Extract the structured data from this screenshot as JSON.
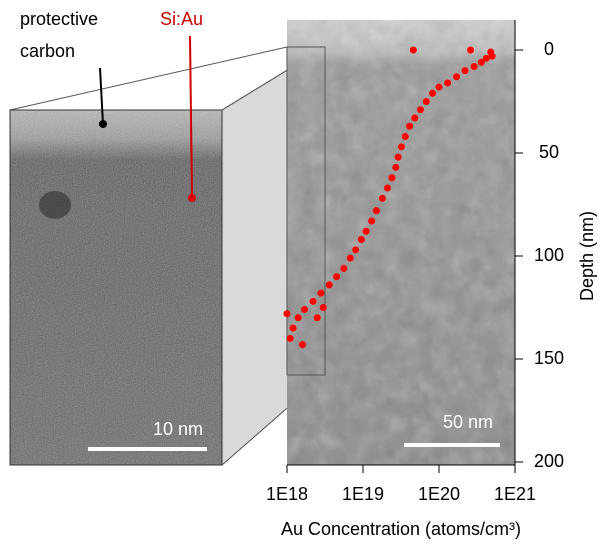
{
  "chart_data": {
    "type": "scatter",
    "xlabel": "Au Concentration (atoms/cm³)",
    "ylabel": "Depth (nm)",
    "xscale": "log",
    "xlim": [
      1e+18,
      1e+21
    ],
    "xticks": [
      {
        "value": 1e+18,
        "label": "1E18"
      },
      {
        "value": 1e+19,
        "label": "1E19"
      },
      {
        "value": 1e+20,
        "label": "1E20"
      },
      {
        "value": 1e+21,
        "label": "1E21"
      }
    ],
    "ylim": [
      0,
      200
    ],
    "yticks": [
      0,
      50,
      100,
      150,
      200
    ],
    "y_inverted": true,
    "y_axis_side": "right",
    "series": [
      {
        "color": "#ff0000",
        "x": [
          4.6e+19,
          2.6e+20,
          4.8e+20,
          5e+20,
          4.2e+20,
          3.6e+20,
          2.9e+20,
          2.2e+20,
          1.7e+20,
          1.3e+20,
          1e+20,
          8.2e+19,
          6.8e+19,
          5.7e+19,
          4.8e+19,
          4.1e+19,
          3.6e+19,
          3.2e+19,
          2.9e+19,
          2.7e+19,
          2.4e+19,
          2.1e+19,
          1.8e+19,
          1.5e+19,
          1.3e+19,
          1.1e+19,
          9.5e+18,
          8e+18,
          6.8e+18,
          5.6e+18,
          4.5e+18,
          3.6e+18,
          2.8e+18,
          2.2e+18,
          1.7e+18,
          1.4e+18,
          1.2e+18,
          1.1e+18,
          2.5e+18,
          1.6e+18,
          3e+18,
          1e+18
        ],
        "values": [
          0,
          0,
          1,
          3,
          4,
          6,
          8,
          10,
          13,
          16,
          18,
          21,
          25,
          29,
          33,
          37,
          42,
          47,
          52,
          57,
          62,
          67,
          72,
          78,
          83,
          88,
          92,
          97,
          101,
          106,
          110,
          114,
          118,
          122,
          126,
          130,
          135,
          140,
          130,
          143,
          125,
          128
        ]
      }
    ],
    "annotations": {
      "protective_carbon": [
        "protective",
        "carbon"
      ],
      "si_au": "Si:Au",
      "scale_left": "10 nm",
      "scale_right": "50 nm"
    }
  }
}
